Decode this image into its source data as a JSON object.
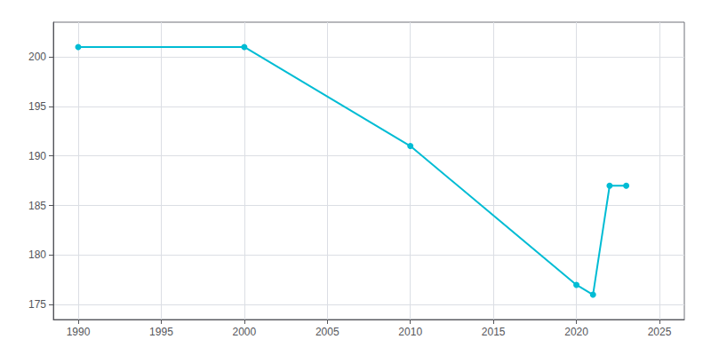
{
  "chart_data": {
    "type": "line",
    "x": [
      1990,
      2000,
      2010,
      2020,
      2021,
      2022,
      2023
    ],
    "values": [
      201,
      201,
      191,
      177,
      176,
      187,
      187
    ],
    "color": "#00bcd4",
    "marker": "circle",
    "xlim": [
      1988.5,
      2026.5
    ],
    "xticks": [
      1990,
      1995,
      2000,
      2005,
      2010,
      2015,
      2020,
      2025
    ],
    "ylim": [
      173.5,
      203.5
    ],
    "yticks": [
      175,
      180,
      185,
      190,
      195,
      200
    ],
    "grid": true
  }
}
